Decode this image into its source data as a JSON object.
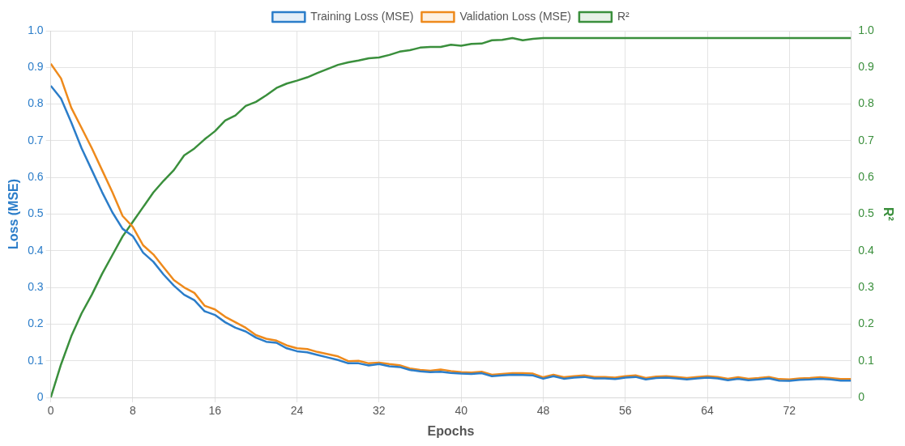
{
  "chart_data": {
    "type": "line",
    "xlabel": "Epochs",
    "ylabel": "Loss (MSE)",
    "y2label": "R²",
    "x": [
      0,
      1,
      2,
      3,
      4,
      5,
      6,
      7,
      8,
      9,
      10,
      11,
      12,
      13,
      14,
      15,
      16,
      17,
      18,
      19,
      20,
      21,
      22,
      23,
      24,
      25,
      26,
      27,
      28,
      29,
      30,
      31,
      32,
      33,
      34,
      35,
      36,
      37,
      38,
      39,
      40,
      41,
      42,
      43,
      44,
      45,
      46,
      47,
      48,
      49,
      50,
      51,
      52,
      53,
      54,
      55,
      56,
      57,
      58,
      59,
      60,
      61,
      62,
      63,
      64,
      65,
      66,
      67,
      68,
      69,
      70,
      71,
      72,
      73,
      74,
      75,
      76,
      77,
      78
    ],
    "xlim": [
      0,
      78
    ],
    "xticks": [
      0,
      8,
      16,
      24,
      32,
      40,
      48,
      56,
      64,
      72
    ],
    "ylim": [
      0,
      1
    ],
    "yticks": [
      0,
      0.1,
      0.2,
      0.3,
      0.4,
      0.5,
      0.6,
      0.7,
      0.8,
      0.9,
      {
        "value": 1,
        "label": "1.0"
      }
    ],
    "y2lim": [
      0,
      1
    ],
    "y2ticks": [
      0,
      0.1,
      0.2,
      0.3,
      0.4,
      0.5,
      0.6,
      0.7,
      0.8,
      0.9,
      {
        "value": 1,
        "label": "1.0"
      }
    ],
    "grid": true,
    "legend": "top",
    "marker": "none",
    "line_style": "solid",
    "series": [
      {
        "name": "Training Loss (MSE)",
        "color": "#2b7dc9",
        "values": [
          0.85,
          0.815,
          0.75,
          0.68,
          0.62,
          0.56,
          0.505,
          0.46,
          0.44,
          0.395,
          0.37,
          0.335,
          0.305,
          0.28,
          0.265,
          0.235,
          0.225,
          0.205,
          0.19,
          0.18,
          0.163,
          0.152,
          0.149,
          0.134,
          0.126,
          0.123,
          0.116,
          0.109,
          0.102,
          0.093,
          0.093,
          0.087,
          0.091,
          0.085,
          0.083,
          0.075,
          0.071,
          0.069,
          0.07,
          0.067,
          0.065,
          0.064,
          0.066,
          0.058,
          0.06,
          0.062,
          0.061,
          0.06,
          0.051,
          0.058,
          0.051,
          0.054,
          0.056,
          0.052,
          0.052,
          0.05,
          0.054,
          0.056,
          0.049,
          0.053,
          0.054,
          0.052,
          0.049,
          0.052,
          0.054,
          0.052,
          0.047,
          0.051,
          0.047,
          0.049,
          0.052,
          0.046,
          0.045,
          0.048,
          0.049,
          0.051,
          0.049,
          0.046,
          0.046
        ]
      },
      {
        "name": "Validation Loss (MSE)",
        "color": "#ee8a1c",
        "values": [
          0.91,
          0.87,
          0.79,
          0.735,
          0.68,
          0.62,
          0.56,
          0.495,
          0.465,
          0.415,
          0.39,
          0.355,
          0.32,
          0.3,
          0.285,
          0.25,
          0.24,
          0.22,
          0.205,
          0.19,
          0.17,
          0.16,
          0.155,
          0.142,
          0.134,
          0.132,
          0.124,
          0.118,
          0.112,
          0.099,
          0.1,
          0.093,
          0.095,
          0.091,
          0.088,
          0.079,
          0.075,
          0.073,
          0.076,
          0.072,
          0.069,
          0.068,
          0.07,
          0.062,
          0.064,
          0.066,
          0.066,
          0.065,
          0.055,
          0.062,
          0.055,
          0.058,
          0.06,
          0.056,
          0.056,
          0.054,
          0.058,
          0.06,
          0.053,
          0.057,
          0.058,
          0.056,
          0.053,
          0.056,
          0.058,
          0.056,
          0.051,
          0.055,
          0.051,
          0.053,
          0.056,
          0.05,
          0.049,
          0.052,
          0.053,
          0.055,
          0.053,
          0.05,
          0.05
        ]
      },
      {
        "name": "R²",
        "color": "#3a8f3c",
        "axis": "y2",
        "values": [
          0,
          0.09,
          0.167,
          0.229,
          0.28,
          0.337,
          0.388,
          0.439,
          0.479,
          0.519,
          0.559,
          0.591,
          0.62,
          0.66,
          0.679,
          0.704,
          0.726,
          0.755,
          0.769,
          0.795,
          0.806,
          0.824,
          0.844,
          0.856,
          0.864,
          0.873,
          0.885,
          0.896,
          0.907,
          0.914,
          0.919,
          0.925,
          0.927,
          0.934,
          0.943,
          0.947,
          0.954,
          0.956,
          0.956,
          0.962,
          0.959,
          0.964,
          0.965,
          0.974,
          0.975,
          0.98,
          0.974,
          0.978,
          0.98,
          0.98,
          0.98,
          0.98,
          0.98,
          0.98,
          0.98,
          0.98,
          0.98,
          0.98,
          0.98,
          0.98,
          0.98,
          0.98,
          0.98,
          0.98,
          0.98,
          0.98,
          0.98,
          0.98,
          0.98,
          0.98,
          0.98,
          0.98,
          0.98,
          0.98,
          0.98,
          0.98,
          0.98,
          0.98,
          0.98
        ]
      }
    ]
  }
}
